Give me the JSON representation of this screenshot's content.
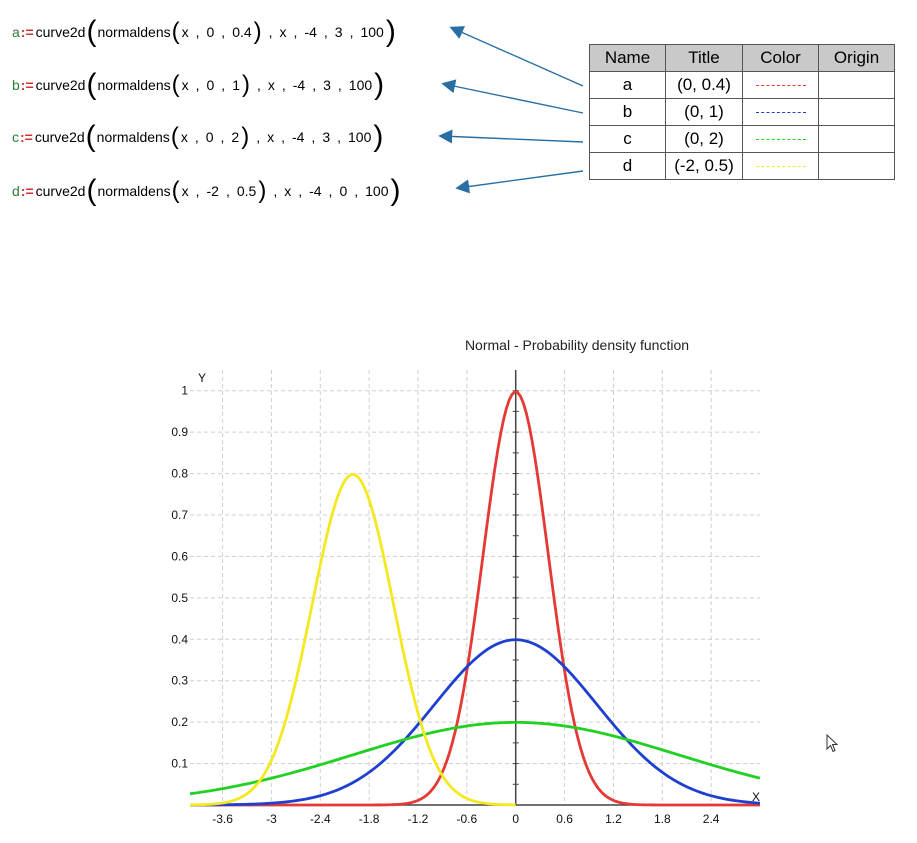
{
  "formulas": [
    {
      "var": "a",
      "assign": ":=",
      "func": "curve2d",
      "inner": "normaldens",
      "args": [
        "x",
        "0",
        "0.4"
      ],
      "outer": [
        "x",
        "-4",
        "3",
        "100"
      ]
    },
    {
      "var": "b",
      "assign": ":=",
      "func": "curve2d",
      "inner": "normaldens",
      "args": [
        "x",
        "0",
        "1"
      ],
      "outer": [
        "x",
        "-4",
        "3",
        "100"
      ]
    },
    {
      "var": "c",
      "assign": ":=",
      "func": "curve2d",
      "inner": "normaldens",
      "args": [
        "x",
        "0",
        "2"
      ],
      "outer": [
        "x",
        "-4",
        "3",
        "100"
      ]
    },
    {
      "var": "d",
      "assign": ":=",
      "func": "curve2d",
      "inner": "normaldens",
      "args": [
        "x",
        "-2",
        "0.5"
      ],
      "outer": [
        "x",
        "-4",
        "0",
        "100"
      ]
    }
  ],
  "table": {
    "headers": [
      "Name",
      "Title",
      "Color",
      "Origin"
    ],
    "rows": [
      {
        "name": "a",
        "title": "(0, 0.4)",
        "color": "#e53935",
        "origin": ""
      },
      {
        "name": "b",
        "title": "(0, 1)",
        "color": "#1e3fd0",
        "origin": ""
      },
      {
        "name": "c",
        "title": "(0, 2)",
        "color": "#22d022",
        "origin": ""
      },
      {
        "name": "d",
        "title": "(-2, 0.5)",
        "color": "#f4e820",
        "origin": ""
      }
    ]
  },
  "chart_data": {
    "type": "line",
    "title": "Normal - Probability density function",
    "xlabel": "X",
    "ylabel": "Y",
    "xlim": [
      -4,
      3
    ],
    "ylim": [
      0,
      1.05
    ],
    "xticks": [
      "-3.6",
      "-3",
      "-2.4",
      "-1.8",
      "-1.2",
      "-0.6",
      "0",
      "0.6",
      "1.2",
      "1.8",
      "2.4"
    ],
    "yticks": [
      "0.1",
      "0.2",
      "0.3",
      "0.4",
      "0.5",
      "0.6",
      "0.7",
      "0.8",
      "0.9",
      "1"
    ],
    "grid": true,
    "series": [
      {
        "name": "a",
        "mu": 0,
        "sigma": 0.4,
        "x_range": [
          -4,
          3
        ],
        "color": "#e53935"
      },
      {
        "name": "b",
        "mu": 0,
        "sigma": 1,
        "x_range": [
          -4,
          3
        ],
        "color": "#1e3fd0"
      },
      {
        "name": "c",
        "mu": 0,
        "sigma": 2,
        "x_range": [
          -4,
          3
        ],
        "color": "#22d022"
      },
      {
        "name": "d",
        "mu": -2,
        "sigma": 0.5,
        "x_range": [
          -4,
          0
        ],
        "color": "#f4e820"
      }
    ]
  }
}
